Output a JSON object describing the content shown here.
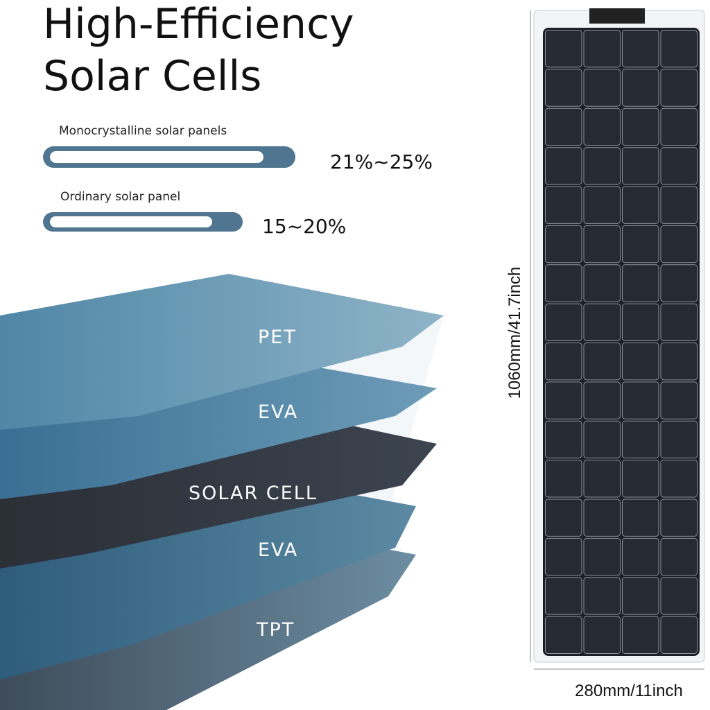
{
  "title": {
    "lines": [
      "High-Efficiency",
      "Solar Cells"
    ]
  },
  "comparison": [
    {
      "label": "Monocrystalline solar panels",
      "value": "21%~25%"
    },
    {
      "label": "Ordinary solar panel",
      "value": "15~20%"
    }
  ],
  "layers": [
    "PET",
    "EVA",
    "SOLAR CELL",
    "EVA",
    "TPT"
  ],
  "dimensions": {
    "height": "1060mm/41.7inch",
    "width": "280mm/11inch"
  }
}
